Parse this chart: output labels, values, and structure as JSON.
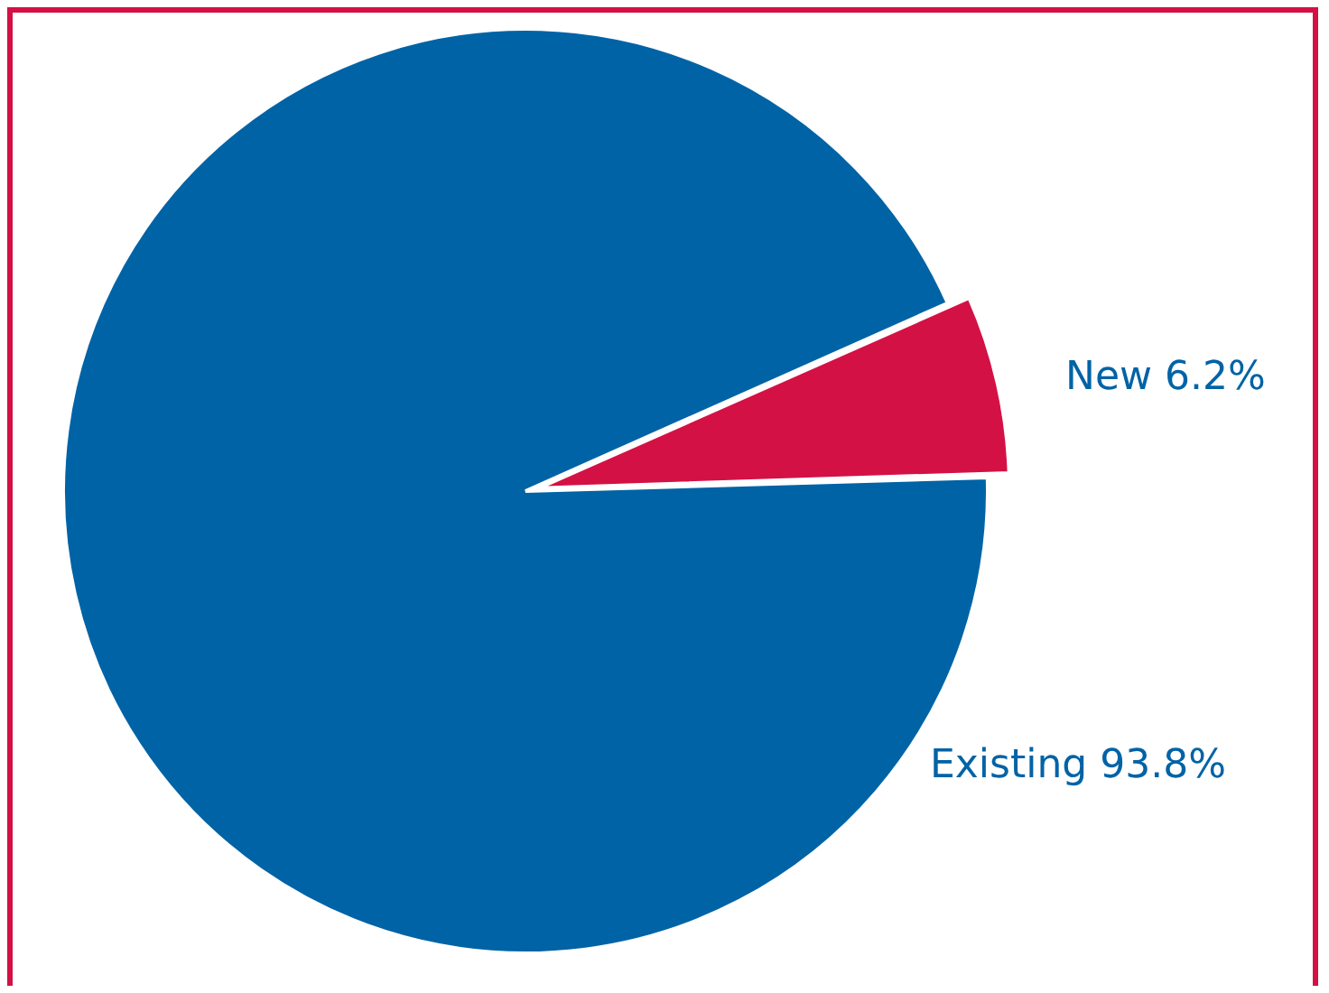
{
  "chart_data": {
    "type": "pie",
    "categories": [
      "New",
      "Existing"
    ],
    "values": [
      6.2,
      93.8
    ],
    "colors": [
      "#d31145",
      "#0063a6"
    ],
    "value_labels": [
      "6.2%",
      "93.8%"
    ]
  }
}
